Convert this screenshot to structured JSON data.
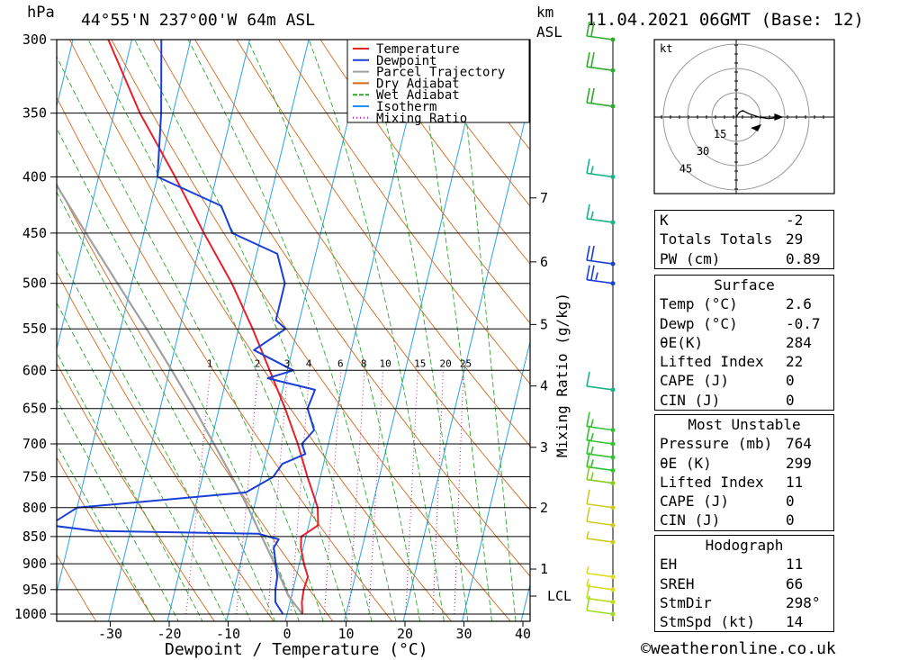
{
  "header": {
    "unit_left": "hPa",
    "location": "44°55'N  237°00'W  64m  ASL",
    "unit_km": "km",
    "unit_asl": "ASL",
    "datetime": "11.04.2021  06GMT  (Base: 12)"
  },
  "chart_data": {
    "type": "skew-t",
    "xlabel": "Dewpoint / Temperature (°C)",
    "mixing_ratio_label": "Mixing Ratio (g/kg)",
    "pressure_ticks": [
      300,
      350,
      400,
      450,
      500,
      550,
      600,
      650,
      700,
      750,
      800,
      850,
      900,
      950,
      1000
    ],
    "pressure_tick_labels": [
      "300",
      "350",
      "400",
      "450",
      "500",
      "550",
      "600",
      "650",
      "700",
      "750",
      "800",
      "850",
      "900",
      "950",
      "1000"
    ],
    "temperature_ticks": [
      -30,
      -20,
      -10,
      0,
      10,
      20,
      30,
      40
    ],
    "temperature_tick_labels": [
      "-30",
      "-20",
      "-10",
      "0",
      "10",
      "20",
      "30",
      "40"
    ],
    "km_ticks": [
      {
        "label": "7",
        "p": 418
      },
      {
        "label": "6",
        "p": 478
      },
      {
        "label": "5",
        "p": 545
      },
      {
        "label": "4",
        "p": 620
      },
      {
        "label": "3",
        "p": 705
      },
      {
        "label": "2",
        "p": 800
      },
      {
        "label": "1",
        "p": 910
      },
      {
        "label": "LCL",
        "p": 963
      }
    ],
    "mixing_ratio_values": [
      "1",
      "2",
      "3",
      "4",
      "6",
      "8",
      "10",
      "15",
      "20",
      "25"
    ],
    "legend": [
      {
        "name": "Temperature",
        "color": "#e8202a"
      },
      {
        "name": "Dewpoint",
        "color": "#1a3fd6"
      },
      {
        "name": "Parcel Trajectory",
        "color": "#a0a0a0"
      },
      {
        "name": "Dry Adiabat",
        "color": "#d2691e"
      },
      {
        "name": "Wet Adiabat",
        "color": "#2eaa2e"
      },
      {
        "name": "Isotherm",
        "color": "#1e90ff"
      },
      {
        "name": "Mixing Ratio",
        "color": "#cc2288"
      }
    ],
    "temperature_profile": [
      {
        "p": 1000,
        "t": 2.6
      },
      {
        "p": 975,
        "t": 2.0
      },
      {
        "p": 950,
        "t": 1.8
      },
      {
        "p": 925,
        "t": 2.0
      },
      {
        "p": 900,
        "t": 0.8
      },
      {
        "p": 870,
        "t": -0.4
      },
      {
        "p": 850,
        "t": -0.8
      },
      {
        "p": 830,
        "t": 1.6
      },
      {
        "p": 800,
        "t": 0.8
      },
      {
        "p": 750,
        "t": -2.2
      },
      {
        "p": 700,
        "t": -5.2
      },
      {
        "p": 650,
        "t": -8.8
      },
      {
        "p": 600,
        "t": -13.0
      },
      {
        "p": 550,
        "t": -17.6
      },
      {
        "p": 500,
        "t": -23.0
      },
      {
        "p": 450,
        "t": -29.8
      },
      {
        "p": 400,
        "t": -37.0
      },
      {
        "p": 350,
        "t": -45.6
      },
      {
        "p": 300,
        "t": -54.0
      }
    ],
    "dewpoint_profile": [
      {
        "p": 1000,
        "t": -0.7
      },
      {
        "p": 975,
        "t": -2.5
      },
      {
        "p": 950,
        "t": -3.0
      },
      {
        "p": 925,
        "t": -3.2
      },
      {
        "p": 900,
        "t": -4.0
      },
      {
        "p": 870,
        "t": -5.0
      },
      {
        "p": 855,
        "t": -4.5
      },
      {
        "p": 845,
        "t": -8.2
      },
      {
        "p": 840,
        "t": -36.0
      },
      {
        "p": 830,
        "t": -44.0
      },
      {
        "p": 800,
        "t": -40.0
      },
      {
        "p": 775,
        "t": -12.0
      },
      {
        "p": 750,
        "t": -8.0
      },
      {
        "p": 730,
        "t": -7.0
      },
      {
        "p": 715,
        "t": -3.5
      },
      {
        "p": 700,
        "t": -4.5
      },
      {
        "p": 680,
        "t": -3.0
      },
      {
        "p": 650,
        "t": -5.0
      },
      {
        "p": 625,
        "t": -4.5
      },
      {
        "p": 610,
        "t": -13.0
      },
      {
        "p": 600,
        "t": -9.0
      },
      {
        "p": 575,
        "t": -16.5
      },
      {
        "p": 550,
        "t": -12.0
      },
      {
        "p": 540,
        "t": -14.0
      },
      {
        "p": 500,
        "t": -14.0
      },
      {
        "p": 470,
        "t": -16.5
      },
      {
        "p": 450,
        "t": -25.0
      },
      {
        "p": 425,
        "t": -28.0
      },
      {
        "p": 400,
        "t": -40.0
      },
      {
        "p": 350,
        "t": -42.0
      },
      {
        "p": 300,
        "t": -45.0
      }
    ],
    "parcel_profile": [
      {
        "p": 1000,
        "t": 2.6
      },
      {
        "p": 963,
        "t": -0.5
      },
      {
        "p": 900,
        "t": -4.2
      },
      {
        "p": 850,
        "t": -7.5
      },
      {
        "p": 800,
        "t": -11.0
      },
      {
        "p": 750,
        "t": -15.0
      },
      {
        "p": 700,
        "t": -19.4
      },
      {
        "p": 650,
        "t": -24.2
      },
      {
        "p": 600,
        "t": -29.6
      },
      {
        "p": 550,
        "t": -35.6
      },
      {
        "p": 500,
        "t": -42.4
      },
      {
        "p": 450,
        "t": -49.8
      },
      {
        "p": 400,
        "t": -58.0
      },
      {
        "p": 350,
        "t": -67.0
      },
      {
        "p": 300,
        "t": -77.0
      }
    ],
    "hodograph": {
      "unit": "kt",
      "rings": [
        15,
        30,
        45
      ],
      "ring_labels": [
        "15",
        "30",
        "45"
      ],
      "points": [
        [
          0,
          0
        ],
        [
          2,
          -3
        ],
        [
          4,
          -4
        ],
        [
          8,
          -2
        ],
        [
          14,
          0
        ],
        [
          20,
          1
        ],
        [
          28,
          0
        ]
      ]
    },
    "wind_barbs": [
      {
        "p": 300,
        "kt": 20,
        "color": "#2eaa2e"
      },
      {
        "p": 320,
        "kt": 20,
        "color": "#2eaa2e"
      },
      {
        "p": 345,
        "kt": 20,
        "color": "#2eaa2e"
      },
      {
        "p": 400,
        "kt": 15,
        "color": "#19b38a"
      },
      {
        "p": 440,
        "kt": 15,
        "color": "#19b38a"
      },
      {
        "p": 480,
        "kt": 20,
        "color": "#1a3fd6"
      },
      {
        "p": 500,
        "kt": 25,
        "color": "#1a3fd6"
      },
      {
        "p": 625,
        "kt": 10,
        "color": "#19b38a"
      },
      {
        "p": 680,
        "kt": 15,
        "color": "#33c233"
      },
      {
        "p": 700,
        "kt": 15,
        "color": "#33c233"
      },
      {
        "p": 720,
        "kt": 15,
        "color": "#33c233"
      },
      {
        "p": 740,
        "kt": 15,
        "color": "#33c233"
      },
      {
        "p": 760,
        "kt": 15,
        "color": "#88cc22"
      },
      {
        "p": 800,
        "kt": 10,
        "color": "#cccc22"
      },
      {
        "p": 830,
        "kt": 10,
        "color": "#cccc22"
      },
      {
        "p": 860,
        "kt": 5,
        "color": "#cccc22"
      },
      {
        "p": 925,
        "kt": 5,
        "color": "#dddd22"
      },
      {
        "p": 950,
        "kt": 5,
        "color": "#dddd22"
      },
      {
        "p": 975,
        "kt": 10,
        "color": "#bbdd22"
      },
      {
        "p": 1000,
        "kt": 10,
        "color": "#99dd22"
      }
    ]
  },
  "indices": [
    {
      "label": "K",
      "value": "-2"
    },
    {
      "label": "Totals Totals",
      "value": "29"
    },
    {
      "label": "PW (cm)",
      "value": "0.89"
    }
  ],
  "surface": {
    "title": "Surface",
    "rows": [
      {
        "label": "Temp (°C)",
        "value": "2.6"
      },
      {
        "label": "Dewp (°C)",
        "value": "-0.7"
      },
      {
        "label": "θE(K)",
        "value": "284"
      },
      {
        "label": "Lifted Index",
        "value": "22"
      },
      {
        "label": "CAPE (J)",
        "value": "0"
      },
      {
        "label": "CIN (J)",
        "value": "0"
      }
    ]
  },
  "most_unstable": {
    "title": "Most Unstable",
    "rows": [
      {
        "label": "Pressure (mb)",
        "value": "764"
      },
      {
        "label": "θE (K)",
        "value": "299"
      },
      {
        "label": "Lifted Index",
        "value": "11"
      },
      {
        "label": "CAPE (J)",
        "value": "0"
      },
      {
        "label": "CIN (J)",
        "value": "0"
      }
    ]
  },
  "hodograph_table": {
    "title": "Hodograph",
    "rows": [
      {
        "label": "EH",
        "value": "11"
      },
      {
        "label": "SREH",
        "value": "66"
      },
      {
        "label": "StmDir",
        "value": "298°"
      },
      {
        "label": "StmSpd (kt)",
        "value": "14"
      }
    ]
  },
  "footer": "©weatheronline.co.uk"
}
